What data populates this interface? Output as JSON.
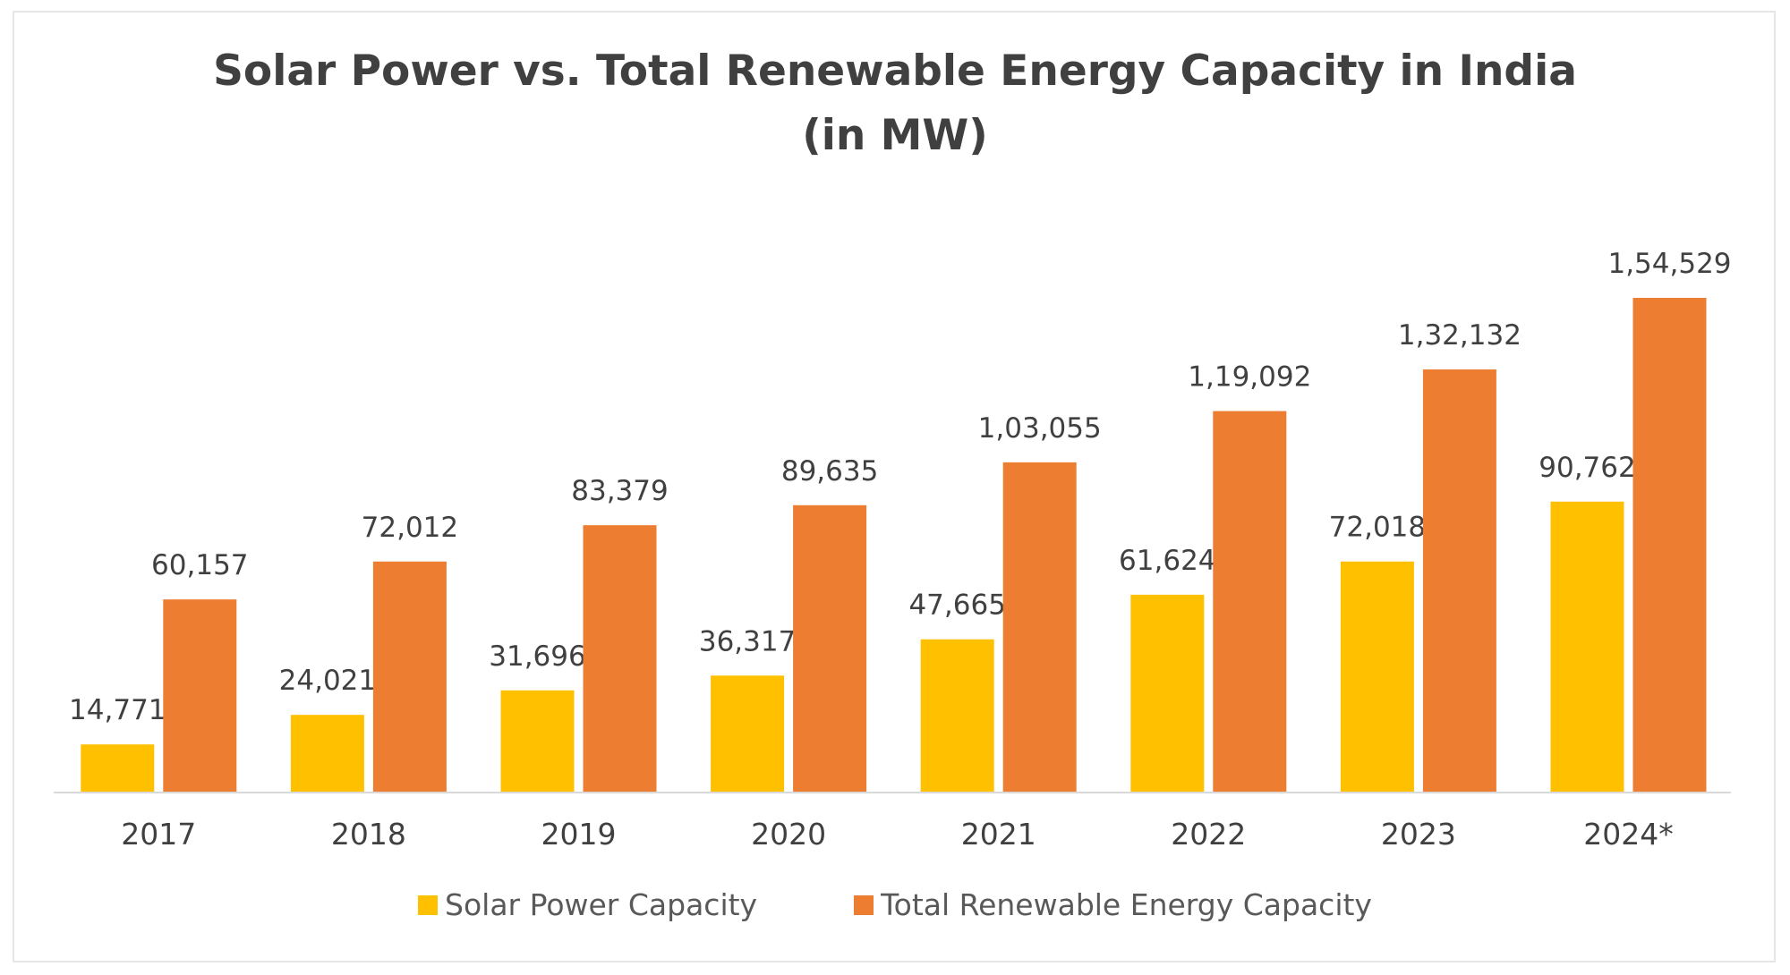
{
  "chart_data": {
    "type": "bar",
    "title": "Solar Power vs. Total Renewable Energy Capacity in India",
    "subtitle": "(in MW)",
    "xlabel": "",
    "ylabel": "",
    "categories": [
      "2017",
      "2018",
      "2019",
      "2020",
      "2021",
      "2022",
      "2023",
      "2024*"
    ],
    "series": [
      {
        "name": "Solar Power Capacity",
        "color": "#FFC000",
        "values": [
          14771,
          24021,
          31696,
          36317,
          47665,
          61624,
          72018,
          90762
        ],
        "labels": [
          "14,771",
          "24,021",
          "31,696",
          "36,317",
          "47,665",
          "61,624",
          "72,018",
          "90,762"
        ]
      },
      {
        "name": "Total Renewable Energy Capacity",
        "color": "#ED7D31",
        "values": [
          60157,
          72012,
          83379,
          89635,
          103055,
          119092,
          132132,
          154529
        ],
        "labels": [
          "60,157",
          "72,012",
          "83,379",
          "89,635",
          "1,03,055",
          "1,19,092",
          "1,32,132",
          "1,54,529"
        ]
      }
    ],
    "ylim": [
      0,
      154529
    ],
    "grid": false,
    "legend_position": "bottom"
  }
}
